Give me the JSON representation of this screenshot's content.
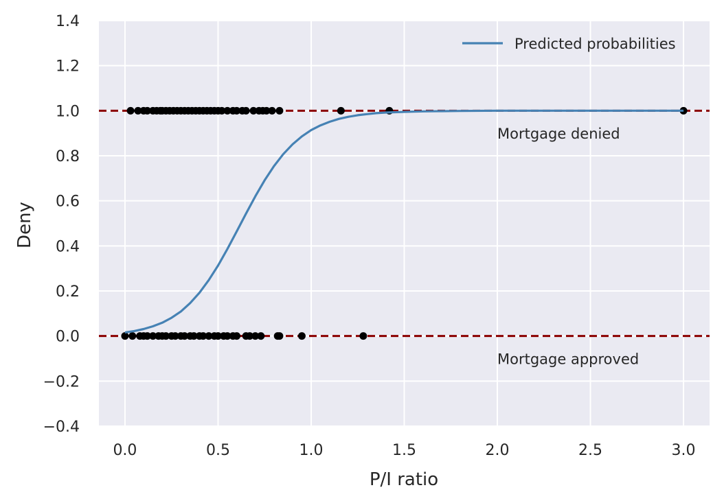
{
  "chart_data": {
    "type": "scatter",
    "title": "",
    "xlabel": "P/I ratio",
    "ylabel": "Deny",
    "xlim": [
      -0.14,
      3.14
    ],
    "ylim": [
      -0.4,
      1.4
    ],
    "x_ticks": [
      0.0,
      0.5,
      1.0,
      1.5,
      2.0,
      2.5,
      3.0
    ],
    "x_tick_labels": [
      "0.0",
      "0.5",
      "1.0",
      "1.5",
      "2.0",
      "2.5",
      "3.0"
    ],
    "y_ticks": [
      -0.4,
      -0.2,
      0.0,
      0.2,
      0.4,
      0.6,
      0.8,
      1.0,
      1.2,
      1.4
    ],
    "y_tick_labels": [
      "−0.4",
      "−0.2",
      "0.0",
      "0.2",
      "0.4",
      "0.6",
      "0.8",
      "1.0",
      "1.2",
      "1.4"
    ],
    "grid": true,
    "legend_position": "top-right",
    "colors": {
      "background": "#eaeaf2",
      "grid": "#ffffff",
      "curve": "#4682b4",
      "points": "#000000",
      "reference_lines": "#8b0000"
    },
    "series": [
      {
        "name": "Predicted probabilities",
        "kind": "line",
        "x": [
          0.0,
          0.05,
          0.1,
          0.15,
          0.2,
          0.25,
          0.3,
          0.35,
          0.4,
          0.45,
          0.5,
          0.55,
          0.6,
          0.65,
          0.7,
          0.75,
          0.8,
          0.85,
          0.9,
          0.95,
          1.0,
          1.05,
          1.1,
          1.15,
          1.2,
          1.25,
          1.3,
          1.35,
          1.4,
          1.5,
          1.6,
          1.7,
          1.8,
          2.0,
          2.2,
          2.5,
          3.0
        ],
        "y": [
          0.016,
          0.022,
          0.031,
          0.043,
          0.059,
          0.081,
          0.109,
          0.146,
          0.192,
          0.248,
          0.313,
          0.386,
          0.464,
          0.543,
          0.62,
          0.691,
          0.754,
          0.807,
          0.851,
          0.886,
          0.914,
          0.935,
          0.951,
          0.964,
          0.973,
          0.98,
          0.985,
          0.989,
          0.992,
          0.995,
          0.997,
          0.998,
          0.999,
          1.0,
          1.0,
          1.0,
          1.0
        ]
      },
      {
        "name": "",
        "kind": "points",
        "group": "denied",
        "x": [
          0.03,
          0.07,
          0.1,
          0.12,
          0.15,
          0.17,
          0.19,
          0.2,
          0.22,
          0.24,
          0.26,
          0.28,
          0.3,
          0.32,
          0.34,
          0.36,
          0.38,
          0.4,
          0.42,
          0.44,
          0.46,
          0.48,
          0.5,
          0.52,
          0.55,
          0.58,
          0.6,
          0.63,
          0.65,
          0.69,
          0.72,
          0.74,
          0.76,
          0.79,
          0.83,
          1.16,
          1.42,
          3.0
        ],
        "y": [
          1,
          1,
          1,
          1,
          1,
          1,
          1,
          1,
          1,
          1,
          1,
          1,
          1,
          1,
          1,
          1,
          1,
          1,
          1,
          1,
          1,
          1,
          1,
          1,
          1,
          1,
          1,
          1,
          1,
          1,
          1,
          1,
          1,
          1,
          1,
          1,
          1,
          1
        ]
      },
      {
        "name": "",
        "kind": "points",
        "group": "approved",
        "x": [
          0.0,
          0.04,
          0.08,
          0.1,
          0.12,
          0.15,
          0.18,
          0.2,
          0.22,
          0.25,
          0.27,
          0.3,
          0.32,
          0.35,
          0.37,
          0.4,
          0.42,
          0.45,
          0.48,
          0.5,
          0.53,
          0.55,
          0.58,
          0.6,
          0.65,
          0.67,
          0.7,
          0.73,
          0.82,
          0.83,
          0.95,
          1.28
        ],
        "y": [
          0,
          0,
          0,
          0,
          0,
          0,
          0,
          0,
          0,
          0,
          0,
          0,
          0,
          0,
          0,
          0,
          0,
          0,
          0,
          0,
          0,
          0,
          0,
          0,
          0,
          0,
          0,
          0,
          0,
          0,
          0,
          0
        ]
      }
    ],
    "reference_lines": [
      {
        "y": 1.0,
        "style": "dashed"
      },
      {
        "y": 0.0,
        "style": "dashed"
      }
    ],
    "annotations": [
      {
        "text": "Mortgage denied",
        "x": 2.0,
        "y": 0.9
      },
      {
        "text": "Mortgage approved",
        "x": 2.0,
        "y": -0.1
      }
    ]
  }
}
